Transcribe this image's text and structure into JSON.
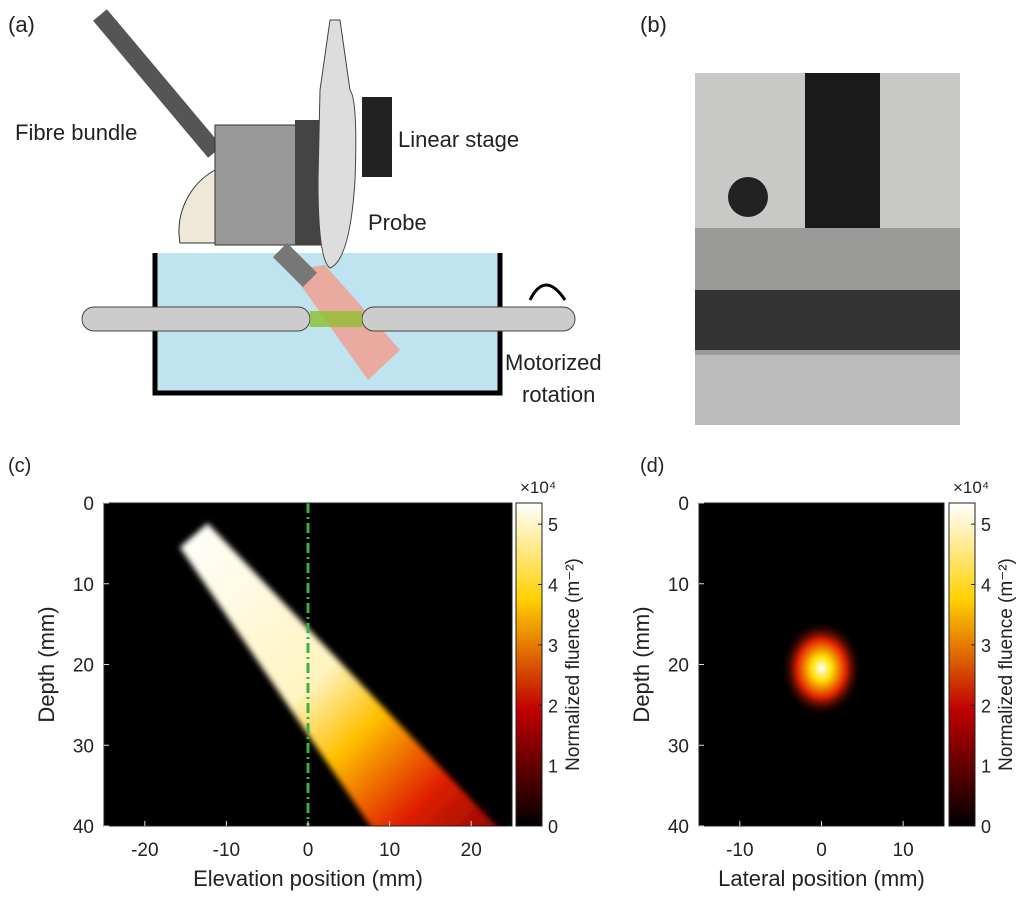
{
  "panels": {
    "a": "(a)",
    "b": "(b)"
  },
  "diagram": {
    "labels": [
      "Fibre bundle",
      "Linear stage",
      "Probe",
      "Motorized",
      "rotation"
    ]
  },
  "chart_data": [
    {
      "type": "heatmap",
      "panel": "(c)",
      "x_label": "Elevation position (mm)",
      "y_label": "Depth (mm)",
      "xlim": [
        -25,
        25
      ],
      "ylim": [
        0,
        40
      ],
      "y_inverted": true,
      "xticks": [
        -20,
        -10,
        0,
        10,
        20
      ],
      "yticks": [
        0,
        10,
        20,
        30,
        40
      ],
      "vline": {
        "x": 0,
        "color": "#3cb043"
      },
      "colorbar": {
        "label": "Normalized fluence (m⁻²)",
        "scale": "×10⁴",
        "lim": [
          0,
          5.35
        ],
        "ticks": [
          0,
          1,
          2,
          3,
          4,
          5
        ],
        "colormap": "hot"
      }
    },
    {
      "type": "heatmap",
      "panel": "(d)",
      "x_label": "Lateral position (mm)",
      "y_label": "Depth (mm)",
      "xlim": [
        -15,
        15
      ],
      "ylim": [
        0,
        40
      ],
      "y_inverted": true,
      "xticks": [
        -10,
        0,
        10
      ],
      "yticks": [
        0,
        10,
        20,
        30,
        40
      ],
      "colorbar": {
        "label": "Normalized fluence (m⁻²)",
        "scale": "×10⁴",
        "lim": [
          0,
          5.35
        ],
        "ticks": [
          0,
          1,
          2,
          3,
          4,
          5
        ],
        "colormap": "hot"
      }
    }
  ]
}
